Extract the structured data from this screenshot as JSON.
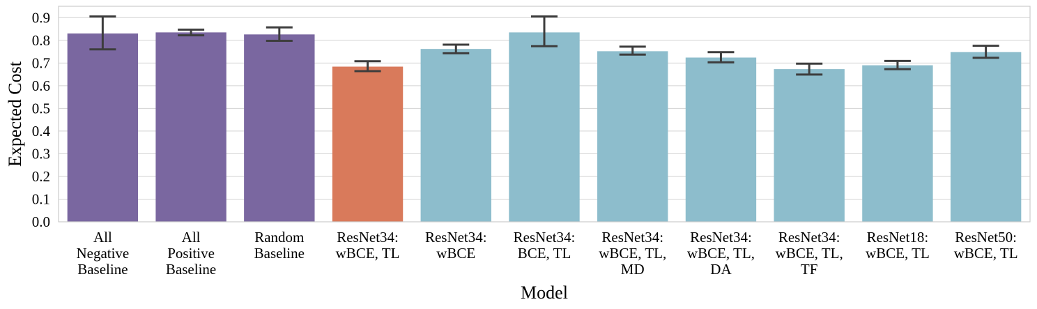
{
  "chart_data": {
    "type": "bar",
    "xlabel": "Model",
    "ylabel": "Expected Cost",
    "ylim": [
      0,
      0.95
    ],
    "yticks": [
      "0.0",
      "0.1",
      "0.2",
      "0.3",
      "0.4",
      "0.5",
      "0.6",
      "0.7",
      "0.8",
      "0.9"
    ],
    "grid": true,
    "categories": [
      [
        "All",
        "Negative",
        "Baseline"
      ],
      [
        "All",
        "Positive",
        "Baseline"
      ],
      [
        "Random",
        "Baseline"
      ],
      [
        "ResNet34:",
        "wBCE, TL"
      ],
      [
        "ResNet34:",
        "wBCE"
      ],
      [
        "ResNet34:",
        "BCE, TL"
      ],
      [
        "ResNet34:",
        "wBCE, TL,",
        "MD"
      ],
      [
        "ResNet34:",
        "wBCE, TL,",
        "DA"
      ],
      [
        "ResNet34:",
        "wBCE, TL,",
        "TF"
      ],
      [
        "ResNet18:",
        "wBCE, TL"
      ],
      [
        "ResNet50:",
        "wBCE, TL"
      ]
    ],
    "values": [
      0.83,
      0.835,
      0.826,
      0.684,
      0.762,
      0.835,
      0.752,
      0.724,
      0.673,
      0.69,
      0.748
    ],
    "error_low": [
      0.76,
      0.822,
      0.798,
      0.664,
      0.743,
      0.774,
      0.737,
      0.703,
      0.649,
      0.673,
      0.723
    ],
    "error_high": [
      0.905,
      0.847,
      0.857,
      0.708,
      0.781,
      0.905,
      0.772,
      0.748,
      0.697,
      0.709,
      0.776
    ],
    "colors": [
      "#7a67a0",
      "#7a67a0",
      "#7a67a0",
      "#d97a5b",
      "#8dbdcc",
      "#8dbdcc",
      "#8dbdcc",
      "#8dbdcc",
      "#8dbdcc",
      "#8dbdcc",
      "#8dbdcc"
    ]
  }
}
